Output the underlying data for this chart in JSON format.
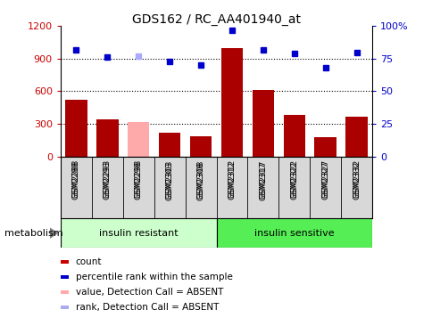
{
  "title": "GDS162 / RC_AA401940_at",
  "samples": [
    "GSM2288",
    "GSM2293",
    "GSM2298",
    "GSM2303",
    "GSM2308",
    "GSM2312",
    "GSM2317",
    "GSM2322",
    "GSM2327",
    "GSM2332"
  ],
  "counts": [
    520,
    340,
    320,
    220,
    190,
    1000,
    610,
    380,
    175,
    370
  ],
  "counts_absent": [
    false,
    false,
    true,
    false,
    false,
    false,
    false,
    false,
    false,
    false
  ],
  "percentile_ranks": [
    82,
    76,
    77,
    73,
    70,
    97,
    82,
    79,
    68,
    80
  ],
  "rank_absent": [
    false,
    false,
    true,
    false,
    false,
    false,
    false,
    false,
    false,
    false
  ],
  "ylim_left": [
    0,
    1200
  ],
  "ylim_right": [
    0,
    100
  ],
  "yticks_left": [
    0,
    300,
    600,
    900,
    1200
  ],
  "yticks_right": [
    0,
    25,
    50,
    75,
    100
  ],
  "ytick_labels_right": [
    "0",
    "25",
    "50",
    "75",
    "100%"
  ],
  "bar_color": "#aa0000",
  "bar_color_absent": "#ffaaaa",
  "dot_color": "#0000cc",
  "dot_color_absent": "#aaaaff",
  "group1_label": "insulin resistant",
  "group2_label": "insulin sensitive",
  "group1_n": 5,
  "group2_n": 5,
  "group1_color": "#ccffcc",
  "group2_color": "#55ee55",
  "xtick_bg": "#d8d8d8",
  "metabolism_label": "metabolism",
  "legend_items": [
    {
      "label": "count",
      "color": "#cc0000"
    },
    {
      "label": "percentile rank within the sample",
      "color": "#0000cc"
    },
    {
      "label": "value, Detection Call = ABSENT",
      "color": "#ffaaaa"
    },
    {
      "label": "rank, Detection Call = ABSENT",
      "color": "#aaaaee"
    }
  ],
  "figsize": [
    4.85,
    3.66
  ],
  "dpi": 100
}
